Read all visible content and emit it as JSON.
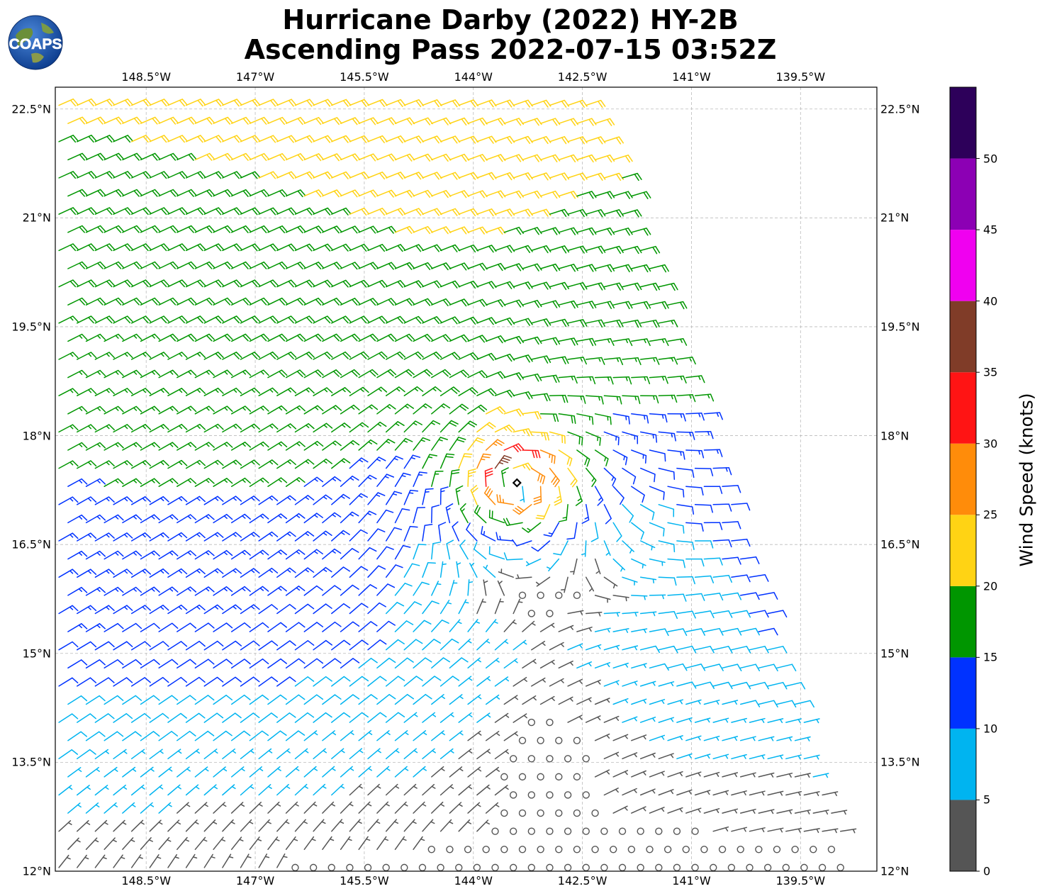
{
  "title_line1": "Hurricane Darby (2022) HY-2B",
  "title_line2": "Ascending Pass 2022-07-15 03:52Z",
  "logo_text": "COAPS",
  "x_ticks": [
    {
      "lon": -148.5,
      "label": "148.5°W"
    },
    {
      "lon": -147.0,
      "label": "147°W"
    },
    {
      "lon": -145.5,
      "label": "145.5°W"
    },
    {
      "lon": -144.0,
      "label": "144°W"
    },
    {
      "lon": -142.5,
      "label": "142.5°W"
    },
    {
      "lon": -141.0,
      "label": "141°W"
    },
    {
      "lon": -139.5,
      "label": "139.5°W"
    }
  ],
  "y_ticks": [
    {
      "lat": 22.5,
      "label": "22.5°N"
    },
    {
      "lat": 21.0,
      "label": "21°N"
    },
    {
      "lat": 19.5,
      "label": "19.5°N"
    },
    {
      "lat": 18.0,
      "label": "18°N"
    },
    {
      "lat": 16.5,
      "label": "16.5°N"
    },
    {
      "lat": 15.0,
      "label": "15°N"
    },
    {
      "lat": 13.5,
      "label": "13.5°N"
    },
    {
      "lat": 12.0,
      "label": "12°N"
    }
  ],
  "colorbar": {
    "label": "Wind Speed (knots)",
    "bins": [
      {
        "min": 0,
        "max": 5,
        "color": "#555555"
      },
      {
        "min": 5,
        "max": 10,
        "color": "#00b4f0"
      },
      {
        "min": 10,
        "max": 15,
        "color": "#0032ff"
      },
      {
        "min": 15,
        "max": 20,
        "color": "#009600"
      },
      {
        "min": 20,
        "max": 25,
        "color": "#ffd314"
      },
      {
        "min": 25,
        "max": 30,
        "color": "#ff8c0a"
      },
      {
        "min": 30,
        "max": 35,
        "color": "#ff1414"
      },
      {
        "min": 35,
        "max": 40,
        "color": "#803c28"
      },
      {
        "min": 40,
        "max": 45,
        "color": "#f000f0"
      },
      {
        "min": 45,
        "max": 50,
        "color": "#8c00b4"
      },
      {
        "min": 50,
        "max": 55,
        "color": "#2d005a"
      }
    ],
    "tick_labels": [
      "0",
      "5",
      "10",
      "15",
      "20",
      "25",
      "30",
      "35",
      "40",
      "45",
      "50"
    ]
  },
  "chart_data": {
    "type": "scatter",
    "plot_kind": "wind barbs (scatterometer swath)",
    "xlim": [
      -149.75,
      -138.45
    ],
    "ylim": [
      12.0,
      22.8
    ],
    "grid": true,
    "storm_center": {
      "lon": -143.4,
      "lat": 17.35
    },
    "approx_max_wind_knots": 35,
    "swath_east_edge": [
      {
        "lat": 22.8,
        "lon": -142.3
      },
      {
        "lat": 12.0,
        "lon": -138.75
      }
    ]
  }
}
